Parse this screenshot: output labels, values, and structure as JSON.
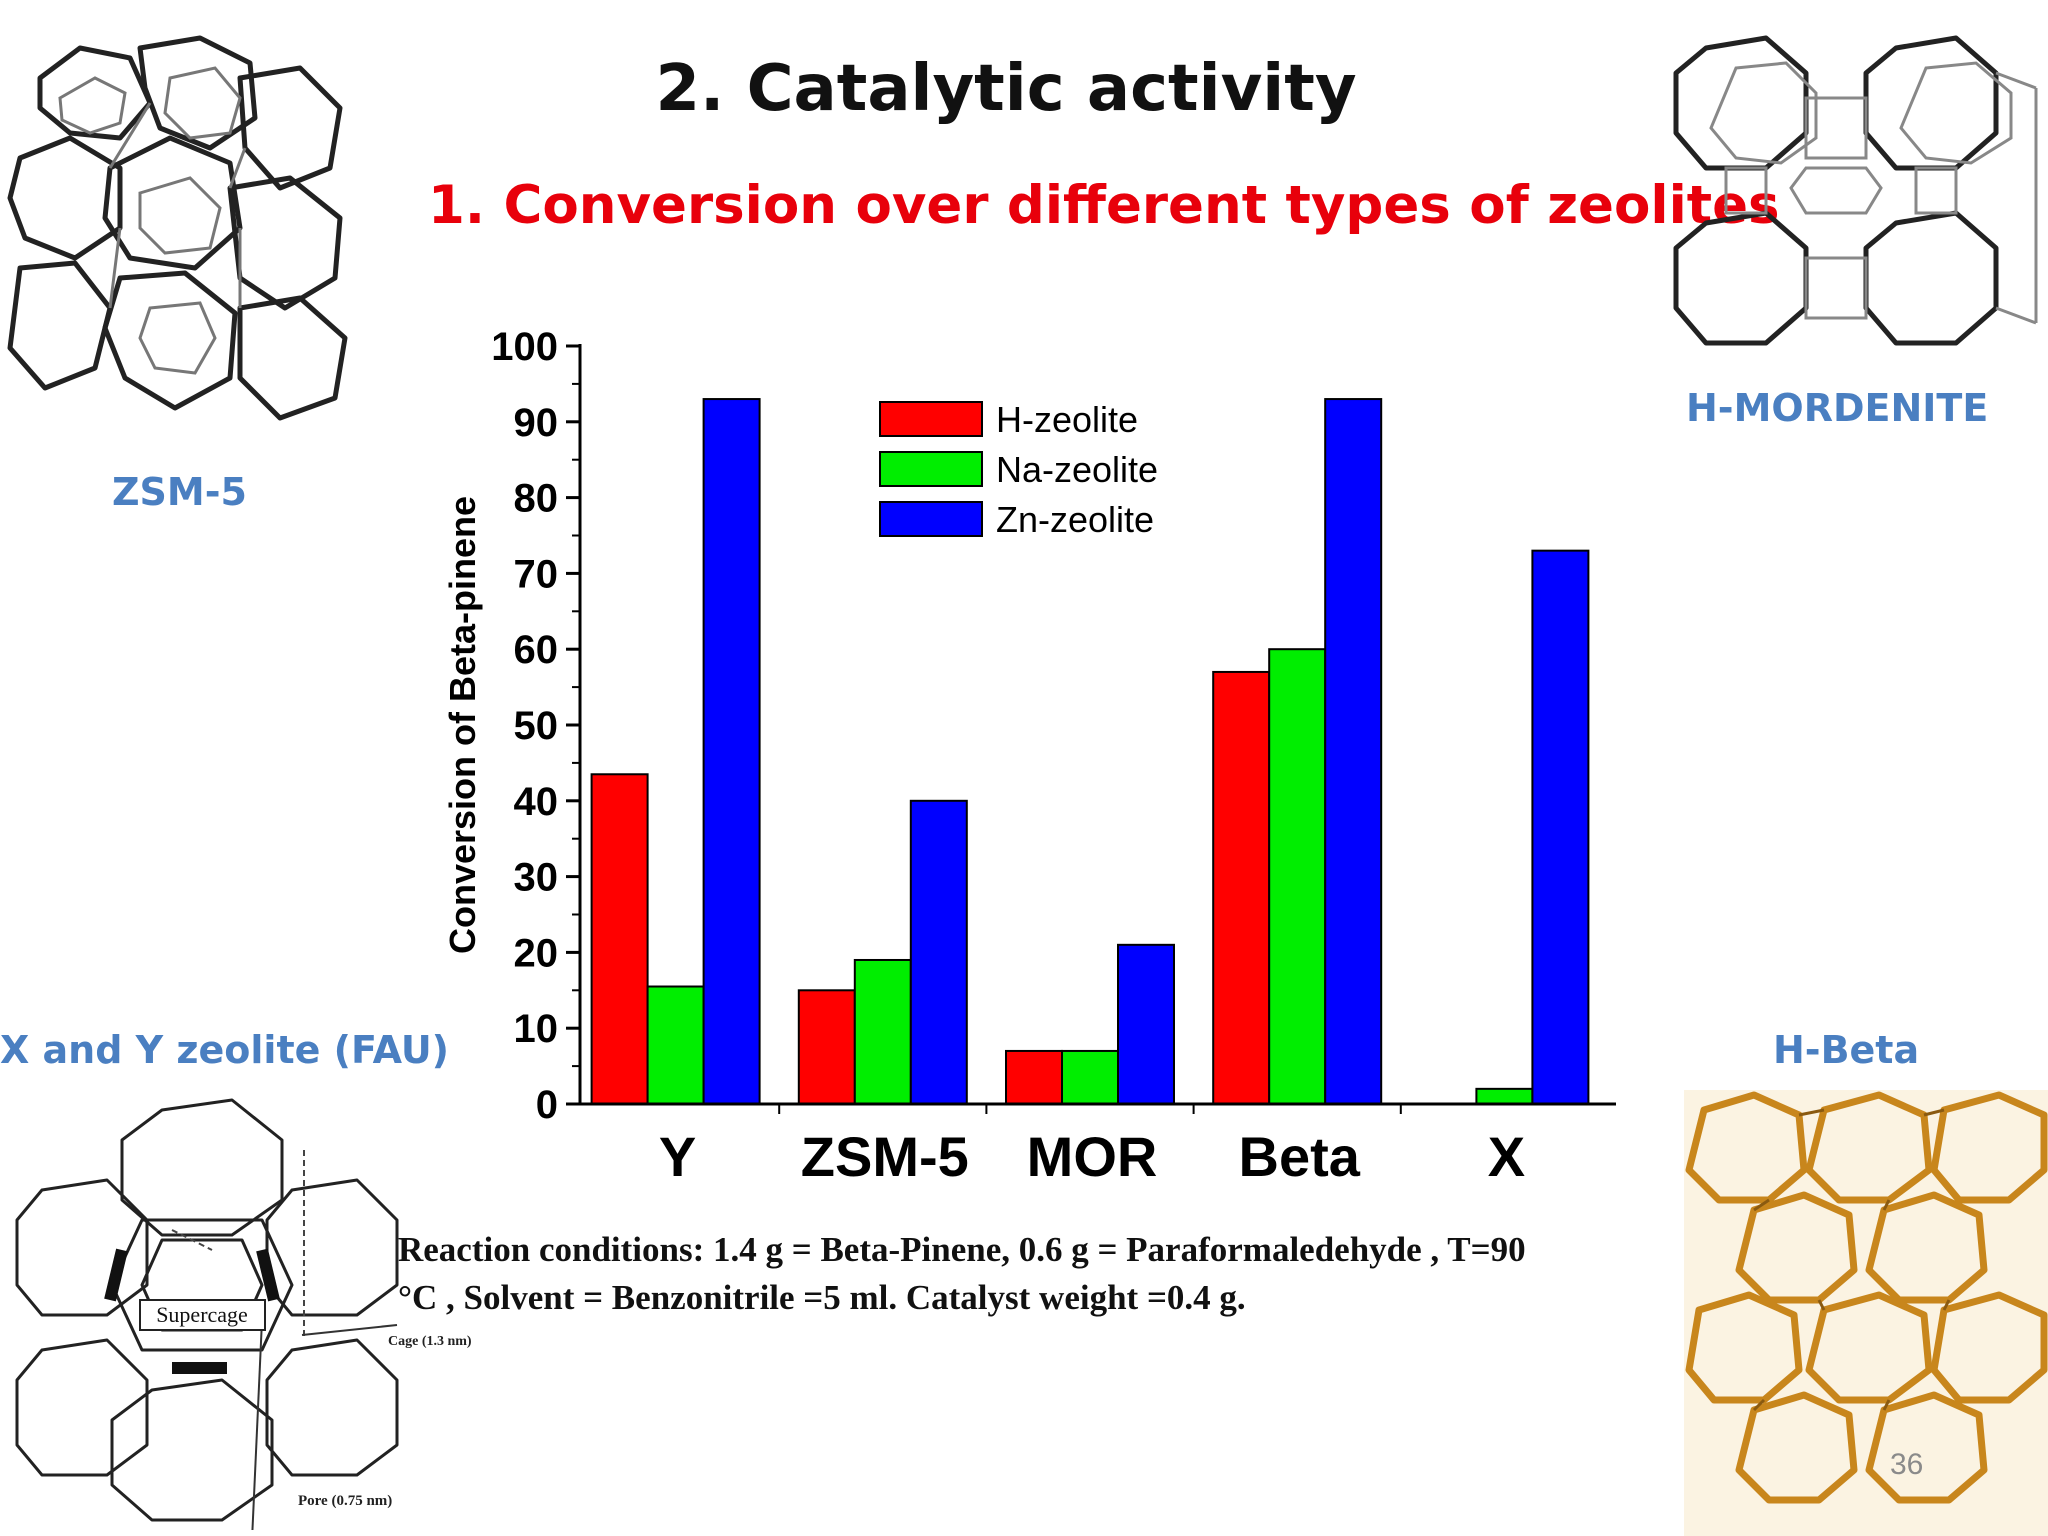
{
  "slide": {
    "title": "2. Catalytic activity",
    "subtitle": "1. Conversion over different types of zeolites",
    "page_number": "36",
    "conditions_line1": "Reaction conditions: 1.4 g = Beta-Pinene, 0.6 g = Paraformaledehyde , T=90",
    "conditions_line2": "°C , Solvent = Benzonitrile =5 ml. Catalyst weight  =0.4 g."
  },
  "structures": {
    "zsm5": {
      "label": "ZSM-5"
    },
    "mordenite": {
      "label": "H-MORDENITE"
    },
    "fau": {
      "label": "X and Y zeolite (FAU)",
      "supercage": "Supercage",
      "cage": "Cage  (1.3 nm)",
      "pore": "Pore  (0.75 nm)"
    },
    "beta": {
      "label": "H-Beta"
    }
  },
  "colors": {
    "title": "#111111",
    "subtitle": "#e8000b",
    "structure_labels": "#4a7fc1",
    "h_zeolite": "#ff0000",
    "na_zeolite": "#00ee00",
    "zn_zeolite": "#0000ff"
  },
  "chart_data": {
    "type": "bar",
    "categories": [
      "Y",
      "ZSM-5",
      "MOR",
      "Beta",
      "X"
    ],
    "series": [
      {
        "name": "H-zeolite",
        "color": "#ff0000",
        "values": [
          43.5,
          15,
          7,
          57,
          null
        ]
      },
      {
        "name": "Na-zeolite",
        "color": "#00ee00",
        "values": [
          15.5,
          19,
          7,
          60,
          2
        ]
      },
      {
        "name": "Zn-zeolite",
        "color": "#0000ff",
        "values": [
          93,
          40,
          21,
          93,
          73
        ]
      }
    ],
    "ylabel": "Conversion of Beta-pinene",
    "xlabel": "",
    "ylim": [
      0,
      100
    ],
    "yticks": [
      0,
      10,
      20,
      30,
      40,
      50,
      60,
      70,
      80,
      90,
      100
    ],
    "legend": "top-center",
    "grid": false
  }
}
